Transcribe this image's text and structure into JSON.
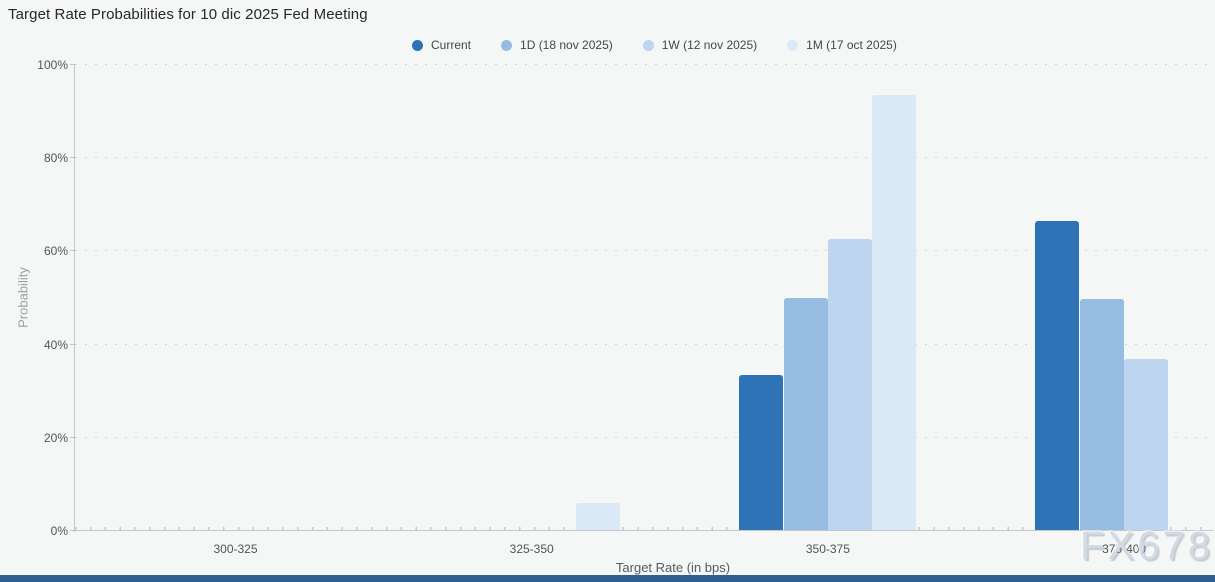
{
  "page": {
    "title": "Target Rate Probabilities for 10 dic 2025 Fed Meeting",
    "watermark": "FX678",
    "background_color": "#f5f6f6",
    "footer_bar_color": "#2f5e91"
  },
  "chart_data": {
    "type": "bar",
    "title": "Target Rate Probabilities for 10 dic 2025 Fed Meeting",
    "categories": [
      "300-325",
      "325-350",
      "350-375",
      "375-400"
    ],
    "series": [
      {
        "name": "Current",
        "color": "#2e73b5",
        "values": [
          0,
          0,
          33.5,
          66.5
        ]
      },
      {
        "name": "1D (18 nov 2025)",
        "color": "#96bce1",
        "values": [
          0,
          0,
          50.1,
          49.8
        ]
      },
      {
        "name": "1W (12 nov 2025)",
        "color": "#bdd5ee",
        "values": [
          0,
          0,
          62.7,
          37.0
        ]
      },
      {
        "name": "1M (17 oct 2025)",
        "color": "#dbe8f6",
        "values": [
          0,
          6.1,
          93.6,
          0
        ]
      }
    ],
    "xlabel": "Target Rate (in bps)",
    "ylabel": "Probability",
    "ylim": [
      0,
      100
    ],
    "yticks": [
      "0%",
      "20%",
      "40%",
      "60%",
      "80%",
      "100%"
    ],
    "grid": "horizontal-dotted",
    "legend_position": "top-center"
  }
}
